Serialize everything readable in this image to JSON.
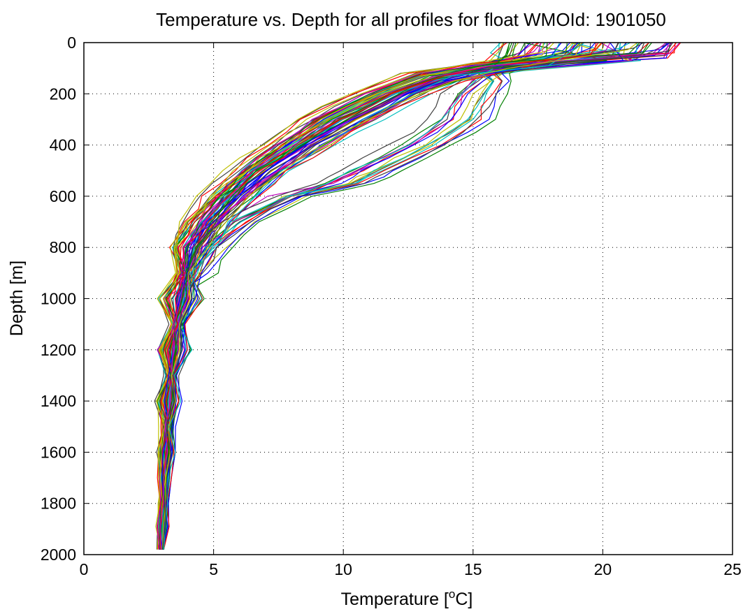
{
  "chart_data": {
    "type": "line",
    "title": "Temperature vs. Depth for all profiles for float WMOId: 1901050",
    "xlabel_main": "Temperature [",
    "xlabel_sup": "o",
    "xlabel_end": "C]",
    "ylabel": "Depth [m]",
    "xlim": [
      0,
      25
    ],
    "ylim": [
      0,
      2000
    ],
    "y_reversed": true,
    "x_ticks": [
      0,
      5,
      10,
      15,
      20,
      25
    ],
    "y_ticks": [
      0,
      200,
      400,
      600,
      800,
      1000,
      1200,
      1400,
      1600,
      1800,
      2000
    ],
    "grid": "dotted",
    "line_colors": [
      "#0000ff",
      "#008000",
      "#ff0000",
      "#00bfbf",
      "#bf00bf",
      "#bfbf00",
      "#404040"
    ],
    "profile_count": 84,
    "series": [
      {
        "depth": [
          0,
          50,
          90,
          130,
          200,
          300,
          400,
          500,
          600,
          700,
          800,
          1000,
          1200,
          1400,
          1600,
          1800,
          1980
        ],
        "temperature": [
          22.5,
          22.0,
          17.0,
          13.5,
          12.0,
          10.0,
          8.5,
          7.0,
          5.8,
          4.8,
          4.2,
          3.7,
          3.5,
          3.3,
          3.2,
          3.1,
          3.0
        ]
      },
      {
        "depth": [
          0,
          50,
          90,
          130,
          200,
          300,
          400,
          500,
          600,
          700,
          800,
          1000,
          1200,
          1400,
          1600,
          1800,
          1980
        ],
        "temperature": [
          16.5,
          16.3,
          15.5,
          13.5,
          11.5,
          9.5,
          8.0,
          6.5,
          5.5,
          4.6,
          4.0,
          3.6,
          3.4,
          3.25,
          3.15,
          3.05,
          3.0
        ]
      },
      {
        "depth": [
          0,
          60,
          100,
          150,
          200,
          300,
          400,
          500,
          600,
          700,
          800,
          1000,
          1200,
          1400,
          1600,
          1800,
          1980
        ],
        "temperature": [
          23.0,
          22.5,
          16.0,
          14.0,
          12.5,
          10.5,
          8.8,
          7.2,
          6.0,
          5.0,
          4.3,
          3.8,
          3.5,
          3.3,
          3.2,
          3.1,
          3.0
        ]
      },
      {
        "depth": [
          0,
          60,
          120,
          150,
          200,
          300,
          400,
          500,
          550,
          600,
          700,
          800,
          900,
          1000,
          1200,
          1400,
          1600,
          1800,
          1980
        ],
        "temperature": [
          16.0,
          16.0,
          15.5,
          15.8,
          15.5,
          15.0,
          13.5,
          11.5,
          10.5,
          8.0,
          6.0,
          5.0,
          4.3,
          3.9,
          3.5,
          3.3,
          3.2,
          3.1,
          3.0
        ]
      },
      {
        "depth": [
          0,
          40,
          80,
          120,
          200,
          300,
          400,
          500,
          600,
          700,
          800,
          1000,
          1200,
          1400,
          1600,
          1800,
          1980
        ],
        "temperature": [
          18.0,
          17.5,
          16.0,
          13.0,
          11.0,
          9.0,
          7.5,
          6.2,
          5.2,
          4.5,
          4.0,
          3.6,
          3.4,
          3.2,
          3.1,
          3.0,
          2.9
        ]
      },
      {
        "depth": [
          0,
          50,
          100,
          150,
          200,
          300,
          400,
          500,
          600,
          700,
          800,
          1000,
          1200,
          1400,
          1600,
          1800,
          1980
        ],
        "temperature": [
          20.0,
          19.5,
          15.5,
          13.5,
          12.0,
          10.0,
          8.2,
          6.8,
          5.6,
          4.7,
          4.1,
          3.7,
          3.5,
          3.3,
          3.2,
          3.1,
          3.0
        ]
      },
      {
        "depth": [
          0,
          50,
          100,
          150,
          200,
          300,
          400,
          500,
          550,
          600,
          700,
          800,
          1000,
          1200,
          1400,
          1600,
          1800,
          1980
        ],
        "temperature": [
          16.2,
          16.0,
          15.8,
          15.2,
          14.5,
          14.0,
          12.5,
          10.5,
          9.5,
          8.0,
          6.0,
          4.8,
          3.9,
          3.5,
          3.3,
          3.2,
          3.1,
          3.0
        ]
      },
      {
        "depth": [
          0,
          70,
          110,
          150,
          200,
          300,
          400,
          500,
          600,
          700,
          800,
          1000,
          1200,
          1400,
          1600,
          1800,
          1980
        ],
        "temperature": [
          21.5,
          21.0,
          16.5,
          14.0,
          12.8,
          11.0,
          9.2,
          7.5,
          6.2,
          5.1,
          4.4,
          3.8,
          3.5,
          3.3,
          3.2,
          3.1,
          3.0
        ]
      },
      {
        "depth": [
          0,
          40,
          80,
          120,
          200,
          300,
          400,
          500,
          600,
          700,
          800,
          1000,
          1200,
          1400,
          1600,
          1800,
          1980
        ],
        "temperature": [
          17.0,
          16.8,
          15.5,
          13.5,
          11.2,
          9.3,
          7.8,
          6.4,
          5.4,
          4.6,
          4.0,
          3.6,
          3.4,
          3.2,
          3.1,
          3.0,
          3.0
        ]
      },
      {
        "depth": [
          0,
          50,
          90,
          130,
          200,
          300,
          400,
          500,
          600,
          700,
          800,
          1000,
          1200,
          1400,
          1600,
          1800,
          1980
        ],
        "temperature": [
          19.0,
          18.5,
          16.0,
          14.0,
          12.2,
          10.2,
          8.6,
          7.0,
          5.9,
          4.9,
          4.2,
          3.7,
          3.5,
          3.3,
          3.2,
          3.1,
          3.0
        ]
      }
    ]
  }
}
